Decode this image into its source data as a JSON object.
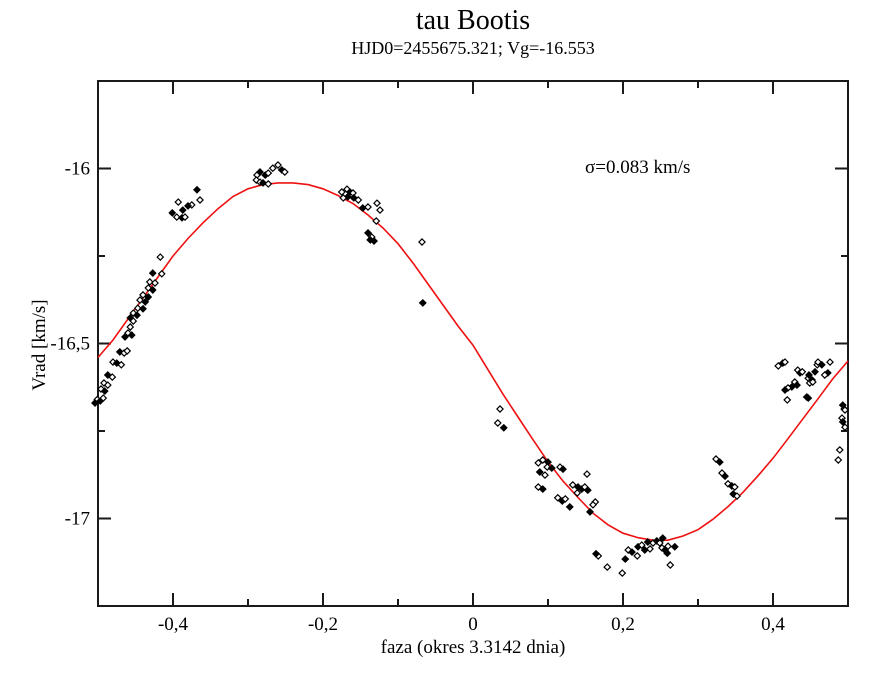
{
  "chart_data": {
    "type": "scatter",
    "title": "tau Bootis",
    "subtitle": "HJD0=2455675.321; Vg=-16.553",
    "annotation": "σ=0.083 km/s",
    "xlabel": "faza (okres 3.3142 dnia)",
    "ylabel": "Vrad [km/s]",
    "xlim": [
      -0.5,
      0.5
    ],
    "ylim": [
      -17.25,
      -15.75
    ],
    "grid": false,
    "legend": "none",
    "colors": {
      "curve": "#ee1111",
      "points": "#000000",
      "frame": "#1a1a1a"
    },
    "x_major_ticks": [
      {
        "v": -0.4,
        "label": "-0,4"
      },
      {
        "v": -0.2,
        "label": "-0,2"
      },
      {
        "v": 0,
        "label": "0"
      },
      {
        "v": 0.2,
        "label": "0,2"
      },
      {
        "v": 0.4,
        "label": "0,4"
      }
    ],
    "x_minor_ticks": [
      -0.3,
      -0.1,
      0.1,
      0.3
    ],
    "y_major_ticks": [
      {
        "v": -16,
        "label": "-16"
      },
      {
        "v": -16.5,
        "label": "-16,5"
      },
      {
        "v": -17,
        "label": "-17"
      }
    ],
    "y_minor_ticks": [
      -16.25,
      -16.75
    ],
    "fit_curve": {
      "name": "orbital-fit-curve",
      "points": [
        [
          -0.5,
          -16.54
        ],
        [
          -0.48,
          -16.49
        ],
        [
          -0.46,
          -16.43
        ],
        [
          -0.44,
          -16.37
        ],
        [
          -0.42,
          -16.31
        ],
        [
          -0.4,
          -16.25
        ],
        [
          -0.38,
          -16.2
        ],
        [
          -0.36,
          -16.155
        ],
        [
          -0.34,
          -16.115
        ],
        [
          -0.32,
          -16.08
        ],
        [
          -0.3,
          -16.058
        ],
        [
          -0.28,
          -16.046
        ],
        [
          -0.26,
          -16.041
        ],
        [
          -0.24,
          -16.041
        ],
        [
          -0.22,
          -16.046
        ],
        [
          -0.2,
          -16.058
        ],
        [
          -0.18,
          -16.077
        ],
        [
          -0.16,
          -16.1
        ],
        [
          -0.14,
          -16.133
        ],
        [
          -0.12,
          -16.17
        ],
        [
          -0.1,
          -16.215
        ],
        [
          -0.08,
          -16.27
        ],
        [
          -0.06,
          -16.33
        ],
        [
          -0.04,
          -16.39
        ],
        [
          -0.02,
          -16.45
        ],
        [
          0.0,
          -16.505
        ],
        [
          0.02,
          -16.575
        ],
        [
          0.04,
          -16.645
        ],
        [
          0.06,
          -16.71
        ],
        [
          0.08,
          -16.775
        ],
        [
          0.1,
          -16.838
        ],
        [
          0.12,
          -16.893
        ],
        [
          0.14,
          -16.94
        ],
        [
          0.16,
          -16.985
        ],
        [
          0.18,
          -17.018
        ],
        [
          0.2,
          -17.042
        ],
        [
          0.22,
          -17.055
        ],
        [
          0.24,
          -17.062
        ],
        [
          0.26,
          -17.062
        ],
        [
          0.28,
          -17.05
        ],
        [
          0.3,
          -17.032
        ],
        [
          0.32,
          -17.002
        ],
        [
          0.34,
          -16.966
        ],
        [
          0.36,
          -16.925
        ],
        [
          0.38,
          -16.878
        ],
        [
          0.4,
          -16.828
        ],
        [
          0.42,
          -16.772
        ],
        [
          0.44,
          -16.715
        ],
        [
          0.46,
          -16.658
        ],
        [
          0.48,
          -16.6
        ],
        [
          0.5,
          -16.55
        ]
      ]
    },
    "series": [
      {
        "name": "radial velocity measurements",
        "marker": "diamond",
        "points": [
          [
            -0.501,
            -16.66,
            1
          ],
          [
            -0.497,
            -16.664,
            0
          ],
          [
            -0.493,
            -16.656,
            1
          ],
          [
            -0.504,
            -16.67,
            0
          ],
          [
            -0.496,
            -16.63,
            1
          ],
          [
            -0.491,
            -16.636,
            0
          ],
          [
            -0.492,
            -16.613,
            1
          ],
          [
            -0.487,
            -16.619,
            1
          ],
          [
            -0.487,
            -16.59,
            0
          ],
          [
            -0.481,
            -16.596,
            1
          ],
          [
            -0.48,
            -16.553,
            1
          ],
          [
            -0.475,
            -16.556,
            0
          ],
          [
            -0.469,
            -16.561,
            1
          ],
          [
            -0.471,
            -16.524,
            0
          ],
          [
            -0.465,
            -16.527,
            1
          ],
          [
            -0.461,
            -16.521,
            1
          ],
          [
            -0.464,
            -16.481,
            0
          ],
          [
            -0.46,
            -16.47,
            1
          ],
          [
            -0.455,
            -16.476,
            0
          ],
          [
            -0.457,
            -16.453,
            1
          ],
          [
            -0.457,
            -16.427,
            0
          ],
          [
            -0.453,
            -16.436,
            1
          ],
          [
            -0.453,
            -16.413,
            1
          ],
          [
            -0.448,
            -16.419,
            0
          ],
          [
            -0.447,
            -16.399,
            1
          ],
          [
            -0.44,
            -16.401,
            0
          ],
          [
            -0.444,
            -16.376,
            1
          ],
          [
            -0.437,
            -16.381,
            0
          ],
          [
            -0.44,
            -16.361,
            1
          ],
          [
            -0.433,
            -16.367,
            0
          ],
          [
            -0.433,
            -16.341,
            1
          ],
          [
            -0.427,
            -16.347,
            0
          ],
          [
            -0.431,
            -16.324,
            1
          ],
          [
            -0.424,
            -16.327,
            1
          ],
          [
            -0.427,
            -16.299,
            0
          ],
          [
            -0.415,
            -16.301,
            1
          ],
          [
            -0.417,
            -16.253,
            1
          ],
          [
            -0.393,
            -16.096,
            1
          ],
          [
            -0.387,
            -16.119,
            0
          ],
          [
            -0.375,
            -16.104,
            1
          ],
          [
            -0.368,
            -16.061,
            0
          ],
          [
            -0.364,
            -16.09,
            1
          ],
          [
            -0.38,
            -16.107,
            0
          ],
          [
            -0.395,
            -16.139,
            1
          ],
          [
            -0.388,
            -16.141,
            0
          ],
          [
            -0.384,
            -16.139,
            1
          ],
          [
            -0.401,
            -16.127,
            0
          ],
          [
            -0.288,
            -16.019,
            1
          ],
          [
            -0.284,
            -16.01,
            0
          ],
          [
            -0.289,
            -16.033,
            1
          ],
          [
            -0.284,
            -16.039,
            1
          ],
          [
            -0.277,
            -16.019,
            0
          ],
          [
            -0.273,
            -16.013,
            1
          ],
          [
            -0.267,
            -15.999,
            1
          ],
          [
            -0.26,
            -15.99,
            1
          ],
          [
            -0.255,
            -16.004,
            0
          ],
          [
            -0.251,
            -16.01,
            1
          ],
          [
            -0.28,
            -16.041,
            0
          ],
          [
            -0.273,
            -16.044,
            1
          ],
          [
            -0.175,
            -16.067,
            1
          ],
          [
            -0.168,
            -16.059,
            1
          ],
          [
            -0.164,
            -16.067,
            0
          ],
          [
            -0.16,
            -16.07,
            1
          ],
          [
            -0.167,
            -16.081,
            0
          ],
          [
            -0.173,
            -16.084,
            1
          ],
          [
            -0.159,
            -16.084,
            0
          ],
          [
            -0.153,
            -16.09,
            1
          ],
          [
            -0.147,
            -16.113,
            0
          ],
          [
            -0.14,
            -16.11,
            1
          ],
          [
            -0.128,
            -16.099,
            1
          ],
          [
            -0.124,
            -16.119,
            1
          ],
          [
            -0.129,
            -16.15,
            1
          ],
          [
            -0.14,
            -16.184,
            0
          ],
          [
            -0.135,
            -16.196,
            1
          ],
          [
            -0.137,
            -16.204,
            0
          ],
          [
            -0.132,
            -16.207,
            0
          ],
          [
            -0.068,
            -16.21,
            1
          ],
          [
            -0.067,
            -16.384,
            0
          ],
          [
            0.036,
            -16.687,
            1
          ],
          [
            0.033,
            -16.727,
            1
          ],
          [
            0.041,
            -16.741,
            0
          ],
          [
            0.087,
            -16.841,
            1
          ],
          [
            0.093,
            -16.833,
            1
          ],
          [
            0.1,
            -16.839,
            0
          ],
          [
            0.099,
            -16.853,
            1
          ],
          [
            0.089,
            -16.867,
            0
          ],
          [
            0.096,
            -16.876,
            1
          ],
          [
            0.105,
            -16.856,
            0
          ],
          [
            0.087,
            -16.91,
            1
          ],
          [
            0.093,
            -16.916,
            0
          ],
          [
            0.116,
            -16.853,
            1
          ],
          [
            0.12,
            -16.859,
            0
          ],
          [
            0.133,
            -16.904,
            1
          ],
          [
            0.14,
            -16.91,
            0
          ],
          [
            0.139,
            -16.927,
            1
          ],
          [
            0.145,
            -16.916,
            0
          ],
          [
            0.149,
            -16.91,
            1
          ],
          [
            0.153,
            -16.919,
            0
          ],
          [
            0.152,
            -16.873,
            1
          ],
          [
            0.113,
            -16.941,
            1
          ],
          [
            0.119,
            -16.95,
            0
          ],
          [
            0.123,
            -16.944,
            1
          ],
          [
            0.129,
            -16.967,
            0
          ],
          [
            0.163,
            -16.953,
            1
          ],
          [
            0.16,
            -16.961,
            1
          ],
          [
            0.156,
            -16.981,
            0
          ],
          [
            0.167,
            -17.107,
            1
          ],
          [
            0.164,
            -17.101,
            0
          ],
          [
            0.179,
            -17.139,
            1
          ],
          [
            0.199,
            -17.156,
            1
          ],
          [
            0.203,
            -17.116,
            0
          ],
          [
            0.207,
            -17.09,
            1
          ],
          [
            0.212,
            -17.096,
            0
          ],
          [
            0.219,
            -17.107,
            1
          ],
          [
            0.22,
            -17.081,
            0
          ],
          [
            0.225,
            -17.076,
            1
          ],
          [
            0.229,
            -17.09,
            0
          ],
          [
            0.236,
            -17.087,
            1
          ],
          [
            0.233,
            -17.067,
            0
          ],
          [
            0.24,
            -17.07,
            1
          ],
          [
            0.245,
            -17.064,
            0
          ],
          [
            0.249,
            -17.07,
            1
          ],
          [
            0.253,
            -17.056,
            0
          ],
          [
            0.252,
            -17.084,
            1
          ],
          [
            0.256,
            -17.09,
            0
          ],
          [
            0.26,
            -17.079,
            1
          ],
          [
            0.259,
            -17.099,
            0
          ],
          [
            0.263,
            -17.133,
            1
          ],
          [
            0.269,
            -17.081,
            0
          ],
          [
            0.324,
            -16.83,
            1
          ],
          [
            0.329,
            -16.839,
            0
          ],
          [
            0.332,
            -16.87,
            1
          ],
          [
            0.336,
            -16.879,
            0
          ],
          [
            0.34,
            -16.901,
            1
          ],
          [
            0.345,
            -16.907,
            0
          ],
          [
            0.349,
            -16.91,
            1
          ],
          [
            0.347,
            -16.93,
            0
          ],
          [
            0.352,
            -16.936,
            1
          ],
          [
            0.407,
            -16.564,
            1
          ],
          [
            0.413,
            -16.556,
            0
          ],
          [
            0.416,
            -16.553,
            1
          ],
          [
            0.433,
            -16.576,
            1
          ],
          [
            0.436,
            -16.584,
            0
          ],
          [
            0.429,
            -16.61,
            1
          ],
          [
            0.432,
            -16.619,
            0
          ],
          [
            0.425,
            -16.624,
            0
          ],
          [
            0.42,
            -16.627,
            1
          ],
          [
            0.416,
            -16.633,
            0
          ],
          [
            0.447,
            -16.599,
            1
          ],
          [
            0.452,
            -16.604,
            0
          ],
          [
            0.449,
            -16.613,
            1
          ],
          [
            0.456,
            -16.581,
            0
          ],
          [
            0.459,
            -16.561,
            1
          ],
          [
            0.46,
            -16.553,
            1
          ],
          [
            0.476,
            -16.553,
            1
          ],
          [
            0.473,
            -16.584,
            0
          ],
          [
            0.469,
            -16.59,
            1
          ],
          [
            0.445,
            -16.653,
            0
          ],
          [
            0.419,
            -16.661,
            1
          ],
          [
            0.447,
            -16.656,
            0
          ],
          [
            0.439,
            -16.581,
            1
          ],
          [
            0.448,
            -16.59,
            0
          ],
          [
            0.453,
            -16.61,
            1
          ],
          [
            0.465,
            -16.561,
            0
          ],
          [
            0.495,
            -16.687,
            1
          ],
          [
            0.493,
            -16.676,
            0
          ],
          [
            0.496,
            -16.69,
            1
          ],
          [
            0.492,
            -16.713,
            1
          ],
          [
            0.493,
            -16.724,
            0
          ],
          [
            0.496,
            -16.739,
            1
          ],
          [
            0.489,
            -16.804,
            1
          ],
          [
            0.487,
            -16.833,
            1
          ]
        ]
      }
    ]
  }
}
